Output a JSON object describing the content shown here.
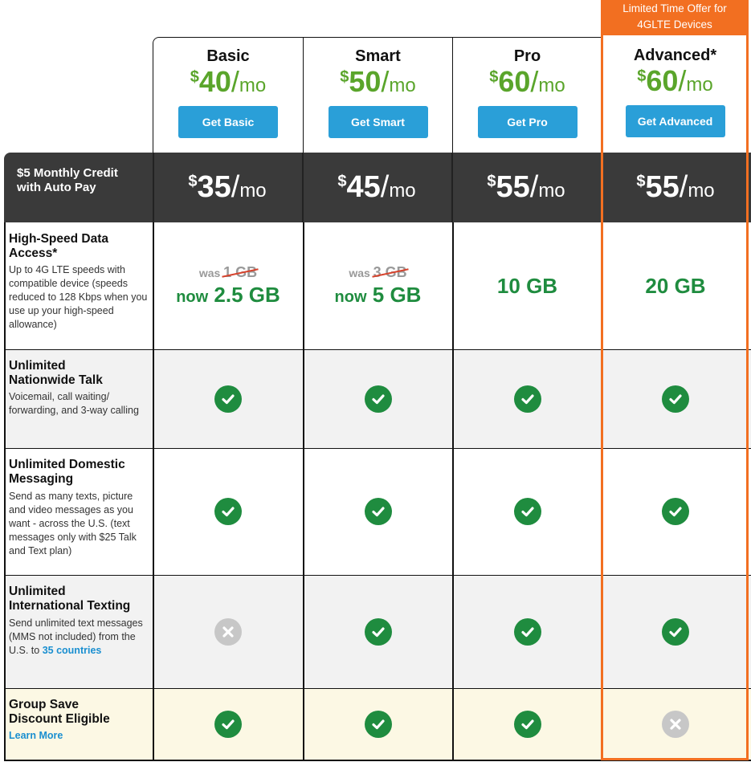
{
  "banner": {
    "text_line1": "Limited Time Offer for",
    "text_line2": "4GLTE Devices"
  },
  "plans": [
    {
      "name": "Basic",
      "currency": "$",
      "price": "40",
      "per": "/",
      "unit": "mo",
      "cta": "Get Basic",
      "autopay_price": "35"
    },
    {
      "name": "Smart",
      "currency": "$",
      "price": "50",
      "per": "/",
      "unit": "mo",
      "cta": "Get Smart",
      "autopay_price": "45"
    },
    {
      "name": "Pro",
      "currency": "$",
      "price": "60",
      "per": "/",
      "unit": "mo",
      "cta": "Get Pro",
      "autopay_price": "55"
    },
    {
      "name": "Advanced*",
      "currency": "$",
      "price": "60",
      "per": "/",
      "unit": "mo",
      "cta": "Get Advanced",
      "autopay_price": "55"
    }
  ],
  "autopay": {
    "line1": "$5 Monthly Credit",
    "line2": "with Auto Pay"
  },
  "features": {
    "data": {
      "title_line1": "High-Speed Data",
      "title_line2": "Access*",
      "desc": "Up to 4G LTE speeds with compatible device (speeds reduced to 128 Kbps when you use up your high-speed allowance)",
      "values": [
        {
          "was_label": "was",
          "was_value": "1 GB",
          "now_label": "now",
          "now_value": "2.5 GB"
        },
        {
          "was_label": "was",
          "was_value": "3 GB",
          "now_label": "now",
          "now_value": "5 GB"
        },
        {
          "value": "10 GB"
        },
        {
          "value": "20 GB"
        }
      ]
    },
    "talk": {
      "title_line1": "Unlimited",
      "title_line2": "Nationwide Talk",
      "desc": "Voicemail, call waiting/ forwarding, and 3-way calling",
      "values": [
        "check",
        "check",
        "check",
        "check"
      ]
    },
    "messaging": {
      "title_line1": "Unlimited Domestic",
      "title_line2": "Messaging",
      "desc": "Send as many texts, picture and video messages as you want - across the U.S. (text messages only with $25 Talk and Text plan)",
      "values": [
        "check",
        "check",
        "check",
        "check"
      ]
    },
    "intl": {
      "title_line1": "Unlimited",
      "title_line2": "International Texting",
      "desc": "Send unlimited text messages (MMS not included) from the U.S. to",
      "desc_link": "35 countries",
      "values": [
        "cross",
        "check",
        "check",
        "check"
      ]
    },
    "group": {
      "title_line1": "Group Save",
      "title_line2": "Discount Eligible",
      "link": "Learn More",
      "values": [
        "check",
        "check",
        "check",
        "cross"
      ]
    }
  },
  "colors": {
    "accent_orange": "#f26f21",
    "price_green": "#5aa52b",
    "check_green": "#1f8c3f",
    "cta_blue": "#2a9fd8",
    "band_dark": "#3a3a3a"
  }
}
